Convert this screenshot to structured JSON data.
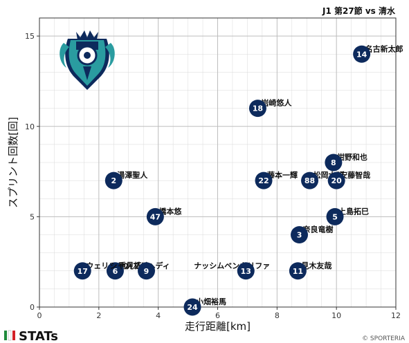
{
  "header": {
    "match": "J1 第27節 vs 清水"
  },
  "footer": {
    "brand": "STATs",
    "copyright": "© SPORTERIA"
  },
  "colors": {
    "marker": "#0d2a5c",
    "marker_text": "#ffffff",
    "grid": "#d9d9d9",
    "stats_green": "#1f8a3b",
    "stats_red": "#d32027"
  },
  "logo": {
    "icon": "avispa-fukuoka-crest"
  },
  "chart_data": {
    "type": "scatter",
    "title": "J1 第27節 vs 清水",
    "xlabel": "走行距離[km]",
    "ylabel": "スプリント回数[回]",
    "xlim": [
      0,
      12
    ],
    "ylim": [
      0,
      16
    ],
    "xticks": [
      0,
      2,
      4,
      6,
      8,
      10,
      12
    ],
    "yticks": [
      0,
      5,
      10,
      15
    ],
    "grid": true,
    "points": [
      {
        "number": "14",
        "name": "名古新太郎",
        "x": 10.85,
        "y": 14
      },
      {
        "number": "18",
        "name": "岩崎悠人",
        "x": 7.35,
        "y": 11
      },
      {
        "number": "8",
        "name": "紺野和也",
        "x": 9.9,
        "y": 8
      },
      {
        "number": "2",
        "name": "湯澤聖人",
        "x": 2.5,
        "y": 7
      },
      {
        "number": "22",
        "name": "藤本一輝",
        "x": 7.55,
        "y": 7
      },
      {
        "number": "88",
        "name": "松岡大起",
        "x": 9.1,
        "y": 7
      },
      {
        "number": "20",
        "name": "安藤智哉",
        "x": 10.0,
        "y": 7
      },
      {
        "number": "47",
        "name": "橋本悠",
        "x": 3.9,
        "y": 5
      },
      {
        "number": "5",
        "name": "上島拓巳",
        "x": 9.95,
        "y": 5
      },
      {
        "number": "3",
        "name": "奈良竜樹",
        "x": 8.75,
        "y": 4
      },
      {
        "number": "17",
        "name": "ウェリントン",
        "x": 1.45,
        "y": 2
      },
      {
        "number": "6",
        "name": "重見柾斗",
        "x": 2.55,
        "y": 2
      },
      {
        "number": "9",
        "name": "シャハブザヘディ",
        "x": 3.6,
        "y": 2
      },
      {
        "number": "13",
        "name": "ナッシムベンカリファ",
        "x": 6.95,
        "y": 2
      },
      {
        "number": "11",
        "name": "見木友哉",
        "x": 8.7,
        "y": 2
      },
      {
        "number": "24",
        "name": "小畑裕馬",
        "x": 5.15,
        "y": 0
      }
    ]
  }
}
